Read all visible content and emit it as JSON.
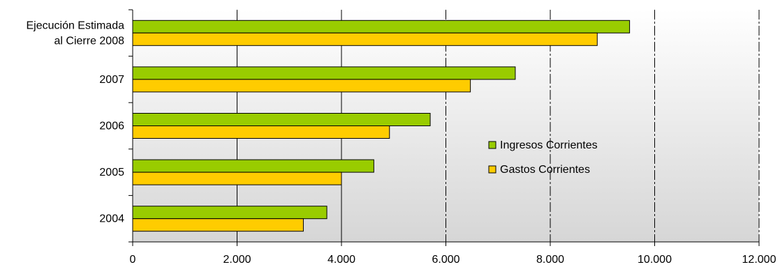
{
  "chart_data": {
    "type": "bar",
    "orientation": "horizontal",
    "title": "",
    "xlabel": "",
    "ylabel": "",
    "categories": [
      [
        "Ejecución Estimada",
        "al Cierre 2008"
      ],
      [
        "2007"
      ],
      [
        "2006"
      ],
      [
        "2005"
      ],
      [
        "2004"
      ]
    ],
    "series": [
      {
        "name": "Ingresos Corrientes",
        "color": "#99cc00",
        "values": [
          9520,
          7330,
          5700,
          4620,
          3720
        ]
      },
      {
        "name": "Gastos Corrientes",
        "color": "#ffcc00",
        "values": [
          8900,
          6470,
          4920,
          4000,
          3270
        ]
      }
    ],
    "xlim": [
      0,
      12000
    ],
    "xticks": [
      0,
      2000,
      4000,
      6000,
      8000,
      10000,
      12000
    ],
    "xtick_labels": [
      "0",
      "2.000",
      "4.000",
      "6.000",
      "8.000",
      "10.000",
      "12.000"
    ],
    "grid": true,
    "legend_position": "right-center",
    "background": "gradient-gray"
  }
}
